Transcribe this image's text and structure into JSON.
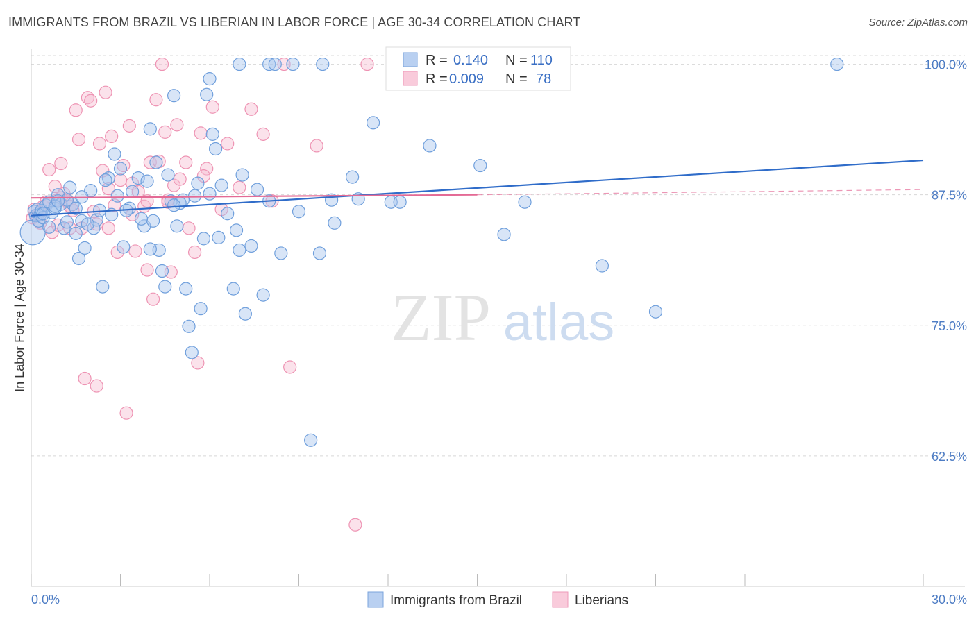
{
  "title": "IMMIGRANTS FROM BRAZIL VS LIBERIAN IN LABOR FORCE | AGE 30-34 CORRELATION CHART",
  "source": "Source: ZipAtlas.com",
  "colors": {
    "blue_fill": "#a9c6ee",
    "blue_stroke": "#6f9fdc",
    "blue_line": "#2f6cc9",
    "pink_fill": "#f7bfd2",
    "pink_stroke": "#ee93b3",
    "pink_line": "#e46a95",
    "grid": "#d8d8d8",
    "tick_label": "#4d7cc4"
  },
  "chart_data": {
    "type": "scatter",
    "title": "IMMIGRANTS FROM BRAZIL VS LIBERIAN IN LABOR FORCE | AGE 30-34 CORRELATION CHART",
    "xlabel": "",
    "ylabel": "In Labor Force | Age 30-34",
    "xlim": [
      0.0,
      30.0
    ],
    "ylim": [
      50.0,
      101.5
    ],
    "x_ticks": [
      0,
      3,
      6,
      9,
      12,
      15,
      18,
      21,
      24,
      27,
      30
    ],
    "x_tick_labels": [
      "0.0%",
      "30.0%"
    ],
    "y_ticks": [
      62.5,
      75.0,
      87.5,
      100.0
    ],
    "y_tick_labels": [
      "62.5%",
      "75.0%",
      "87.5%",
      "100.0%"
    ],
    "watermark": [
      "ZIP",
      "atlas"
    ],
    "legend": [
      {
        "name": "Immigrants from Brazil",
        "r_label": "R =",
        "r": "0.140",
        "n_label": "N =",
        "n": "110"
      },
      {
        "name": "Liberians",
        "r_label": "R =",
        "r": "0.009",
        "n_label": "N =",
        "n": "78"
      }
    ],
    "series": [
      {
        "name": "Immigrants from Brazil",
        "trend": {
          "x": [
            0.0,
            30.0
          ],
          "y": [
            85.5,
            90.8
          ]
        },
        "points": [
          [
            0.05,
            83.9
          ],
          [
            0.1,
            85.9
          ],
          [
            0.15,
            85.5
          ],
          [
            0.2,
            86.1
          ],
          [
            0.25,
            85.0
          ],
          [
            0.3,
            85.6
          ],
          [
            0.35,
            86.0
          ],
          [
            0.4,
            85.3
          ],
          [
            0.5,
            86.5
          ],
          [
            0.6,
            86.8
          ],
          [
            0.7,
            85.8
          ],
          [
            0.8,
            86.2
          ],
          [
            0.9,
            87.5
          ],
          [
            1.0,
            86.6
          ],
          [
            1.1,
            84.3
          ],
          [
            1.2,
            84.9
          ],
          [
            1.3,
            88.2
          ],
          [
            1.4,
            86.6
          ],
          [
            1.5,
            83.8
          ],
          [
            1.6,
            81.4
          ],
          [
            1.7,
            85.0
          ],
          [
            1.8,
            82.4
          ],
          [
            2.0,
            87.9
          ],
          [
            2.1,
            84.3
          ],
          [
            2.2,
            85.1
          ],
          [
            2.4,
            78.7
          ],
          [
            2.6,
            89.1
          ],
          [
            2.8,
            91.4
          ],
          [
            2.9,
            87.4
          ],
          [
            3.1,
            82.5
          ],
          [
            3.3,
            86.2
          ],
          [
            3.4,
            87.8
          ],
          [
            3.6,
            89.1
          ],
          [
            3.8,
            84.5
          ],
          [
            3.9,
            88.8
          ],
          [
            4.0,
            93.8
          ],
          [
            4.1,
            85.0
          ],
          [
            4.3,
            82.2
          ],
          [
            4.4,
            80.2
          ],
          [
            4.5,
            78.7
          ],
          [
            4.6,
            89.4
          ],
          [
            4.7,
            86.9
          ],
          [
            4.8,
            97.0
          ],
          [
            4.9,
            84.5
          ],
          [
            5.1,
            87.0
          ],
          [
            5.2,
            78.5
          ],
          [
            5.3,
            74.9
          ],
          [
            5.5,
            87.4
          ],
          [
            5.6,
            88.6
          ],
          [
            5.7,
            76.6
          ],
          [
            5.8,
            83.3
          ],
          [
            5.9,
            97.1
          ],
          [
            6.0,
            98.6
          ],
          [
            6.1,
            93.3
          ],
          [
            6.2,
            91.9
          ],
          [
            6.4,
            88.4
          ],
          [
            6.6,
            85.7
          ],
          [
            6.8,
            78.5
          ],
          [
            7.0,
            82.2
          ],
          [
            7.1,
            89.4
          ],
          [
            7.2,
            76.1
          ],
          [
            7.6,
            88.0
          ],
          [
            7.8,
            77.9
          ],
          [
            8.0,
            100.0
          ],
          [
            8.2,
            100.0
          ],
          [
            8.4,
            81.9
          ],
          [
            8.8,
            100.0
          ],
          [
            9.4,
            64.0
          ],
          [
            9.7,
            81.9
          ],
          [
            9.8,
            100.0
          ],
          [
            10.2,
            84.8
          ],
          [
            10.8,
            89.2
          ],
          [
            11.5,
            94.4
          ],
          [
            12.1,
            86.8
          ],
          [
            13.4,
            92.2
          ],
          [
            15.1,
            90.3
          ],
          [
            15.9,
            83.7
          ],
          [
            16.6,
            86.8
          ],
          [
            19.2,
            80.7
          ],
          [
            21.0,
            76.3
          ],
          [
            27.1,
            100.0
          ],
          [
            1.2,
            87.0
          ],
          [
            2.3,
            86.0
          ],
          [
            3.7,
            85.2
          ],
          [
            5.0,
            86.7
          ],
          [
            6.3,
            83.4
          ],
          [
            7.4,
            82.6
          ],
          [
            0.6,
            84.4
          ],
          [
            1.9,
            84.7
          ],
          [
            3.0,
            90.0
          ],
          [
            4.2,
            90.6
          ],
          [
            5.4,
            72.4
          ],
          [
            7.0,
            100.0
          ],
          [
            0.8,
            86.4
          ],
          [
            1.5,
            86.2
          ],
          [
            2.7,
            85.6
          ],
          [
            4.0,
            82.3
          ],
          [
            6.0,
            87.6
          ],
          [
            8.0,
            86.9
          ],
          [
            11.0,
            87.1
          ],
          [
            12.4,
            86.8
          ],
          [
            0.4,
            85.7
          ],
          [
            0.9,
            86.9
          ],
          [
            1.7,
            87.3
          ],
          [
            2.5,
            88.9
          ],
          [
            3.2,
            86.0
          ],
          [
            4.8,
            86.5
          ],
          [
            6.9,
            84.1
          ],
          [
            9.0,
            85.9
          ],
          [
            10.1,
            87.0
          ]
        ]
      },
      {
        "name": "Liberians",
        "trend": {
          "x": [
            0.0,
            15.0
          ],
          "y": [
            87.2,
            87.5
          ],
          "dashed_x": [
            15.0,
            30.0
          ],
          "dashed_y": [
            87.5,
            88.0
          ]
        },
        "points": [
          [
            0.05,
            85.3
          ],
          [
            0.1,
            86.1
          ],
          [
            0.2,
            85.5
          ],
          [
            0.3,
            84.8
          ],
          [
            0.4,
            86.4
          ],
          [
            0.5,
            86.8
          ],
          [
            0.6,
            89.9
          ],
          [
            0.7,
            83.9
          ],
          [
            0.8,
            88.3
          ],
          [
            0.9,
            84.6
          ],
          [
            1.0,
            90.5
          ],
          [
            1.1,
            87.6
          ],
          [
            1.2,
            86.9
          ],
          [
            1.3,
            84.3
          ],
          [
            1.4,
            86.0
          ],
          [
            1.5,
            95.6
          ],
          [
            1.6,
            92.8
          ],
          [
            1.7,
            84.3
          ],
          [
            1.8,
            69.9
          ],
          [
            1.9,
            96.8
          ],
          [
            2.0,
            96.5
          ],
          [
            2.1,
            85.9
          ],
          [
            2.2,
            69.2
          ],
          [
            2.3,
            92.4
          ],
          [
            2.4,
            89.8
          ],
          [
            2.5,
            97.3
          ],
          [
            2.6,
            84.3
          ],
          [
            2.7,
            93.1
          ],
          [
            2.8,
            86.5
          ],
          [
            2.9,
            82.0
          ],
          [
            3.0,
            88.9
          ],
          [
            3.1,
            90.3
          ],
          [
            3.2,
            66.6
          ],
          [
            3.3,
            94.1
          ],
          [
            3.4,
            88.6
          ],
          [
            3.5,
            82.1
          ],
          [
            3.6,
            87.8
          ],
          [
            3.8,
            86.4
          ],
          [
            3.9,
            80.3
          ],
          [
            4.0,
            90.6
          ],
          [
            4.1,
            77.5
          ],
          [
            4.2,
            96.6
          ],
          [
            4.3,
            90.7
          ],
          [
            4.4,
            100.0
          ],
          [
            4.5,
            93.5
          ],
          [
            4.6,
            87.0
          ],
          [
            4.7,
            80.1
          ],
          [
            4.8,
            88.4
          ],
          [
            4.9,
            94.2
          ],
          [
            5.0,
            89.0
          ],
          [
            5.2,
            90.6
          ],
          [
            5.3,
            84.3
          ],
          [
            5.5,
            82.0
          ],
          [
            5.6,
            71.4
          ],
          [
            5.7,
            93.4
          ],
          [
            5.9,
            90.0
          ],
          [
            6.1,
            95.9
          ],
          [
            6.6,
            92.4
          ],
          [
            7.0,
            88.2
          ],
          [
            7.4,
            95.7
          ],
          [
            7.8,
            93.3
          ],
          [
            8.1,
            86.9
          ],
          [
            8.5,
            100.0
          ],
          [
            8.7,
            71.0
          ],
          [
            9.6,
            92.2
          ],
          [
            10.9,
            55.9
          ],
          [
            11.3,
            100.0
          ],
          [
            1.0,
            87.2
          ],
          [
            2.2,
            84.7
          ],
          [
            3.4,
            85.6
          ],
          [
            4.6,
            86.8
          ],
          [
            5.8,
            89.3
          ],
          [
            0.3,
            85.8
          ],
          [
            0.8,
            86.9
          ],
          [
            1.3,
            86.4
          ],
          [
            2.6,
            88.1
          ],
          [
            3.9,
            86.9
          ],
          [
            6.4,
            86.1
          ]
        ]
      }
    ]
  }
}
